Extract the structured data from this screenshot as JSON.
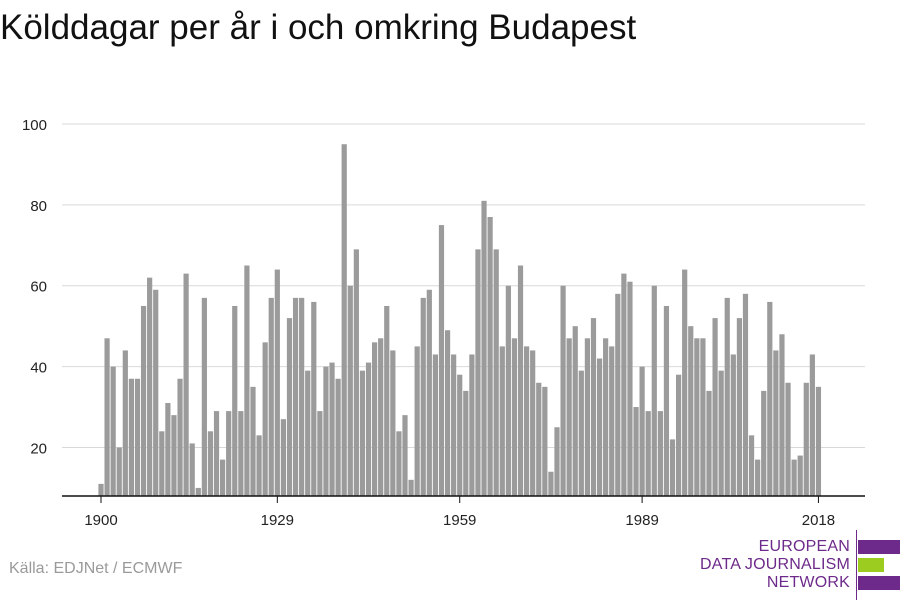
{
  "chart_data": {
    "type": "bar",
    "title": "Kölddagar per år i och omkring Budapest",
    "x_start": 1900,
    "x_end": 2018,
    "values": [
      11,
      47,
      40,
      20,
      44,
      37,
      37,
      55,
      62,
      59,
      24,
      31,
      28,
      37,
      63,
      21,
      10,
      57,
      24,
      29,
      17,
      29,
      55,
      29,
      65,
      35,
      23,
      46,
      57,
      64,
      27,
      52,
      57,
      57,
      39,
      56,
      29,
      40,
      41,
      37,
      95,
      60,
      69,
      39,
      41,
      46,
      47,
      55,
      44,
      24,
      28,
      12,
      45,
      57,
      59,
      43,
      75,
      49,
      43,
      38,
      34,
      43,
      69,
      81,
      77,
      69,
      45,
      60,
      47,
      65,
      45,
      44,
      36,
      35,
      14,
      25,
      60,
      47,
      50,
      39,
      47,
      52,
      42,
      47,
      45,
      58,
      63,
      61,
      30,
      40,
      29,
      60,
      29,
      55,
      22,
      38,
      64,
      50,
      47,
      47,
      34,
      52,
      39,
      57,
      43,
      52,
      58,
      23,
      17,
      34,
      56,
      44,
      48,
      36,
      17,
      18,
      36,
      43,
      35
    ],
    "xticks": [
      1900,
      1929,
      1959,
      1989,
      2018
    ],
    "yticks": [
      20,
      40,
      60,
      80,
      100
    ],
    "ylim": [
      8,
      100
    ],
    "grid": true,
    "bar_color": "#9b9b9b",
    "grid_color": "#d9d9d9"
  },
  "source": "Källa: EDJNet / ECMWF",
  "logo": {
    "lines": [
      "EUROPEAN",
      "DATA JOURNALISM",
      "NETWORK"
    ],
    "colors": {
      "purple": "#6d2a8a",
      "green": "#9ccc1f"
    }
  }
}
